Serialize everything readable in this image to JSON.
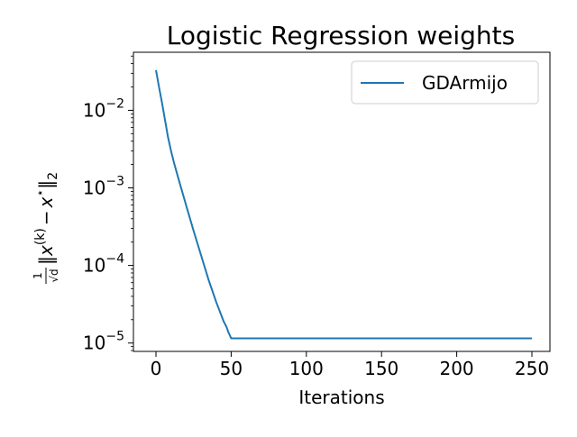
{
  "chart_data": {
    "type": "line",
    "title": "Logistic Regression weights",
    "xlabel": "Iterations",
    "ylabel_parts": {
      "frac_num": "1",
      "frac_den": "√d",
      "norm_open": "‖",
      "x": "x",
      "sup": "(k)",
      "minus": "−",
      "xstar": "x",
      "star": "⋆",
      "norm_close": "‖",
      "sub": "2"
    },
    "yscale": "log",
    "xlim": [
      -15,
      262
    ],
    "ylim": [
      7.8e-06,
      0.056
    ],
    "xticks": [
      0,
      50,
      100,
      150,
      200,
      250
    ],
    "xtick_labels": [
      "0",
      "50",
      "100",
      "150",
      "200",
      "250"
    ],
    "yticks": [
      1e-05,
      0.0001,
      0.001,
      0.01
    ],
    "ytick_labels": [
      {
        "base": "10",
        "exp": "−5"
      },
      {
        "base": "10",
        "exp": "−4"
      },
      {
        "base": "10",
        "exp": "−3"
      },
      {
        "base": "10",
        "exp": "−2"
      }
    ],
    "grid": false,
    "legend_position": "top-right",
    "series": [
      {
        "name": "GDArmijo",
        "color": "#1f77b4",
        "x": [
          0,
          2,
          4,
          6,
          8,
          10,
          12,
          15,
          20,
          25,
          30,
          35,
          40,
          45,
          47,
          48,
          50,
          60,
          100,
          150,
          200,
          250
        ],
        "y": [
          0.033,
          0.02,
          0.0125,
          0.0075,
          0.0045,
          0.003,
          0.0021,
          0.0013,
          0.0006,
          0.00028,
          0.000135,
          6.5e-05,
          3.4e-05,
          1.9e-05,
          1.6e-05,
          1.4e-05,
          1.15e-05,
          1.15e-05,
          1.15e-05,
          1.15e-05,
          1.15e-05,
          1.15e-05
        ]
      }
    ]
  }
}
